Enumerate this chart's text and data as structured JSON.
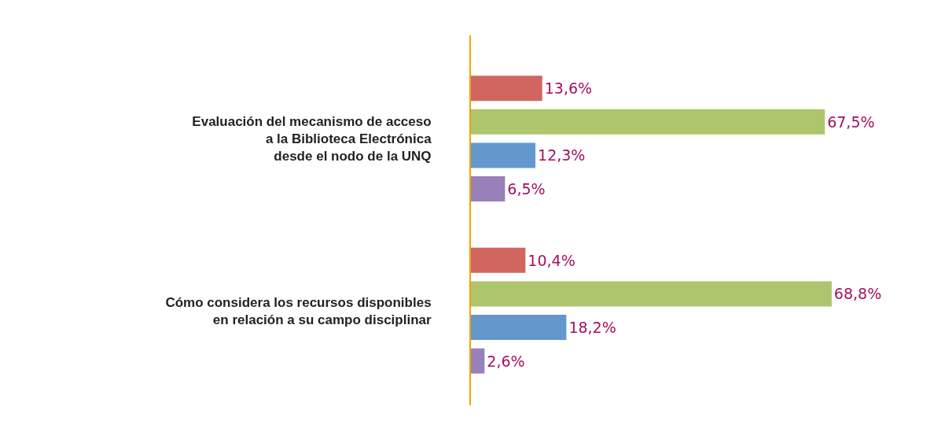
{
  "chart_data": {
    "type": "bar",
    "orientation": "horizontal",
    "categories": [
      "Evaluación del mecanismo de acceso\na la Biblioteca Electrónica\ndesde el nodo de la UNQ",
      "Cómo considera los recursos disponibles\nen relación a su campo disciplinar"
    ],
    "series": [
      {
        "color": "#d0665f",
        "values": [
          13.6,
          10.4
        ],
        "value_labels": [
          "13,6%",
          "10,4%"
        ]
      },
      {
        "color": "#adc66d",
        "values": [
          67.5,
          68.8
        ],
        "value_labels": [
          "67,5%",
          "68,8%"
        ]
      },
      {
        "color": "#6497cc",
        "values": [
          12.3,
          18.2
        ],
        "value_labels": [
          "12,3%",
          "18,2%"
        ]
      },
      {
        "color": "#9880b8",
        "values": [
          6.5,
          2.6
        ],
        "value_labels": [
          "6,5%",
          "2,6%"
        ]
      }
    ],
    "tick_labels": "y"
  }
}
